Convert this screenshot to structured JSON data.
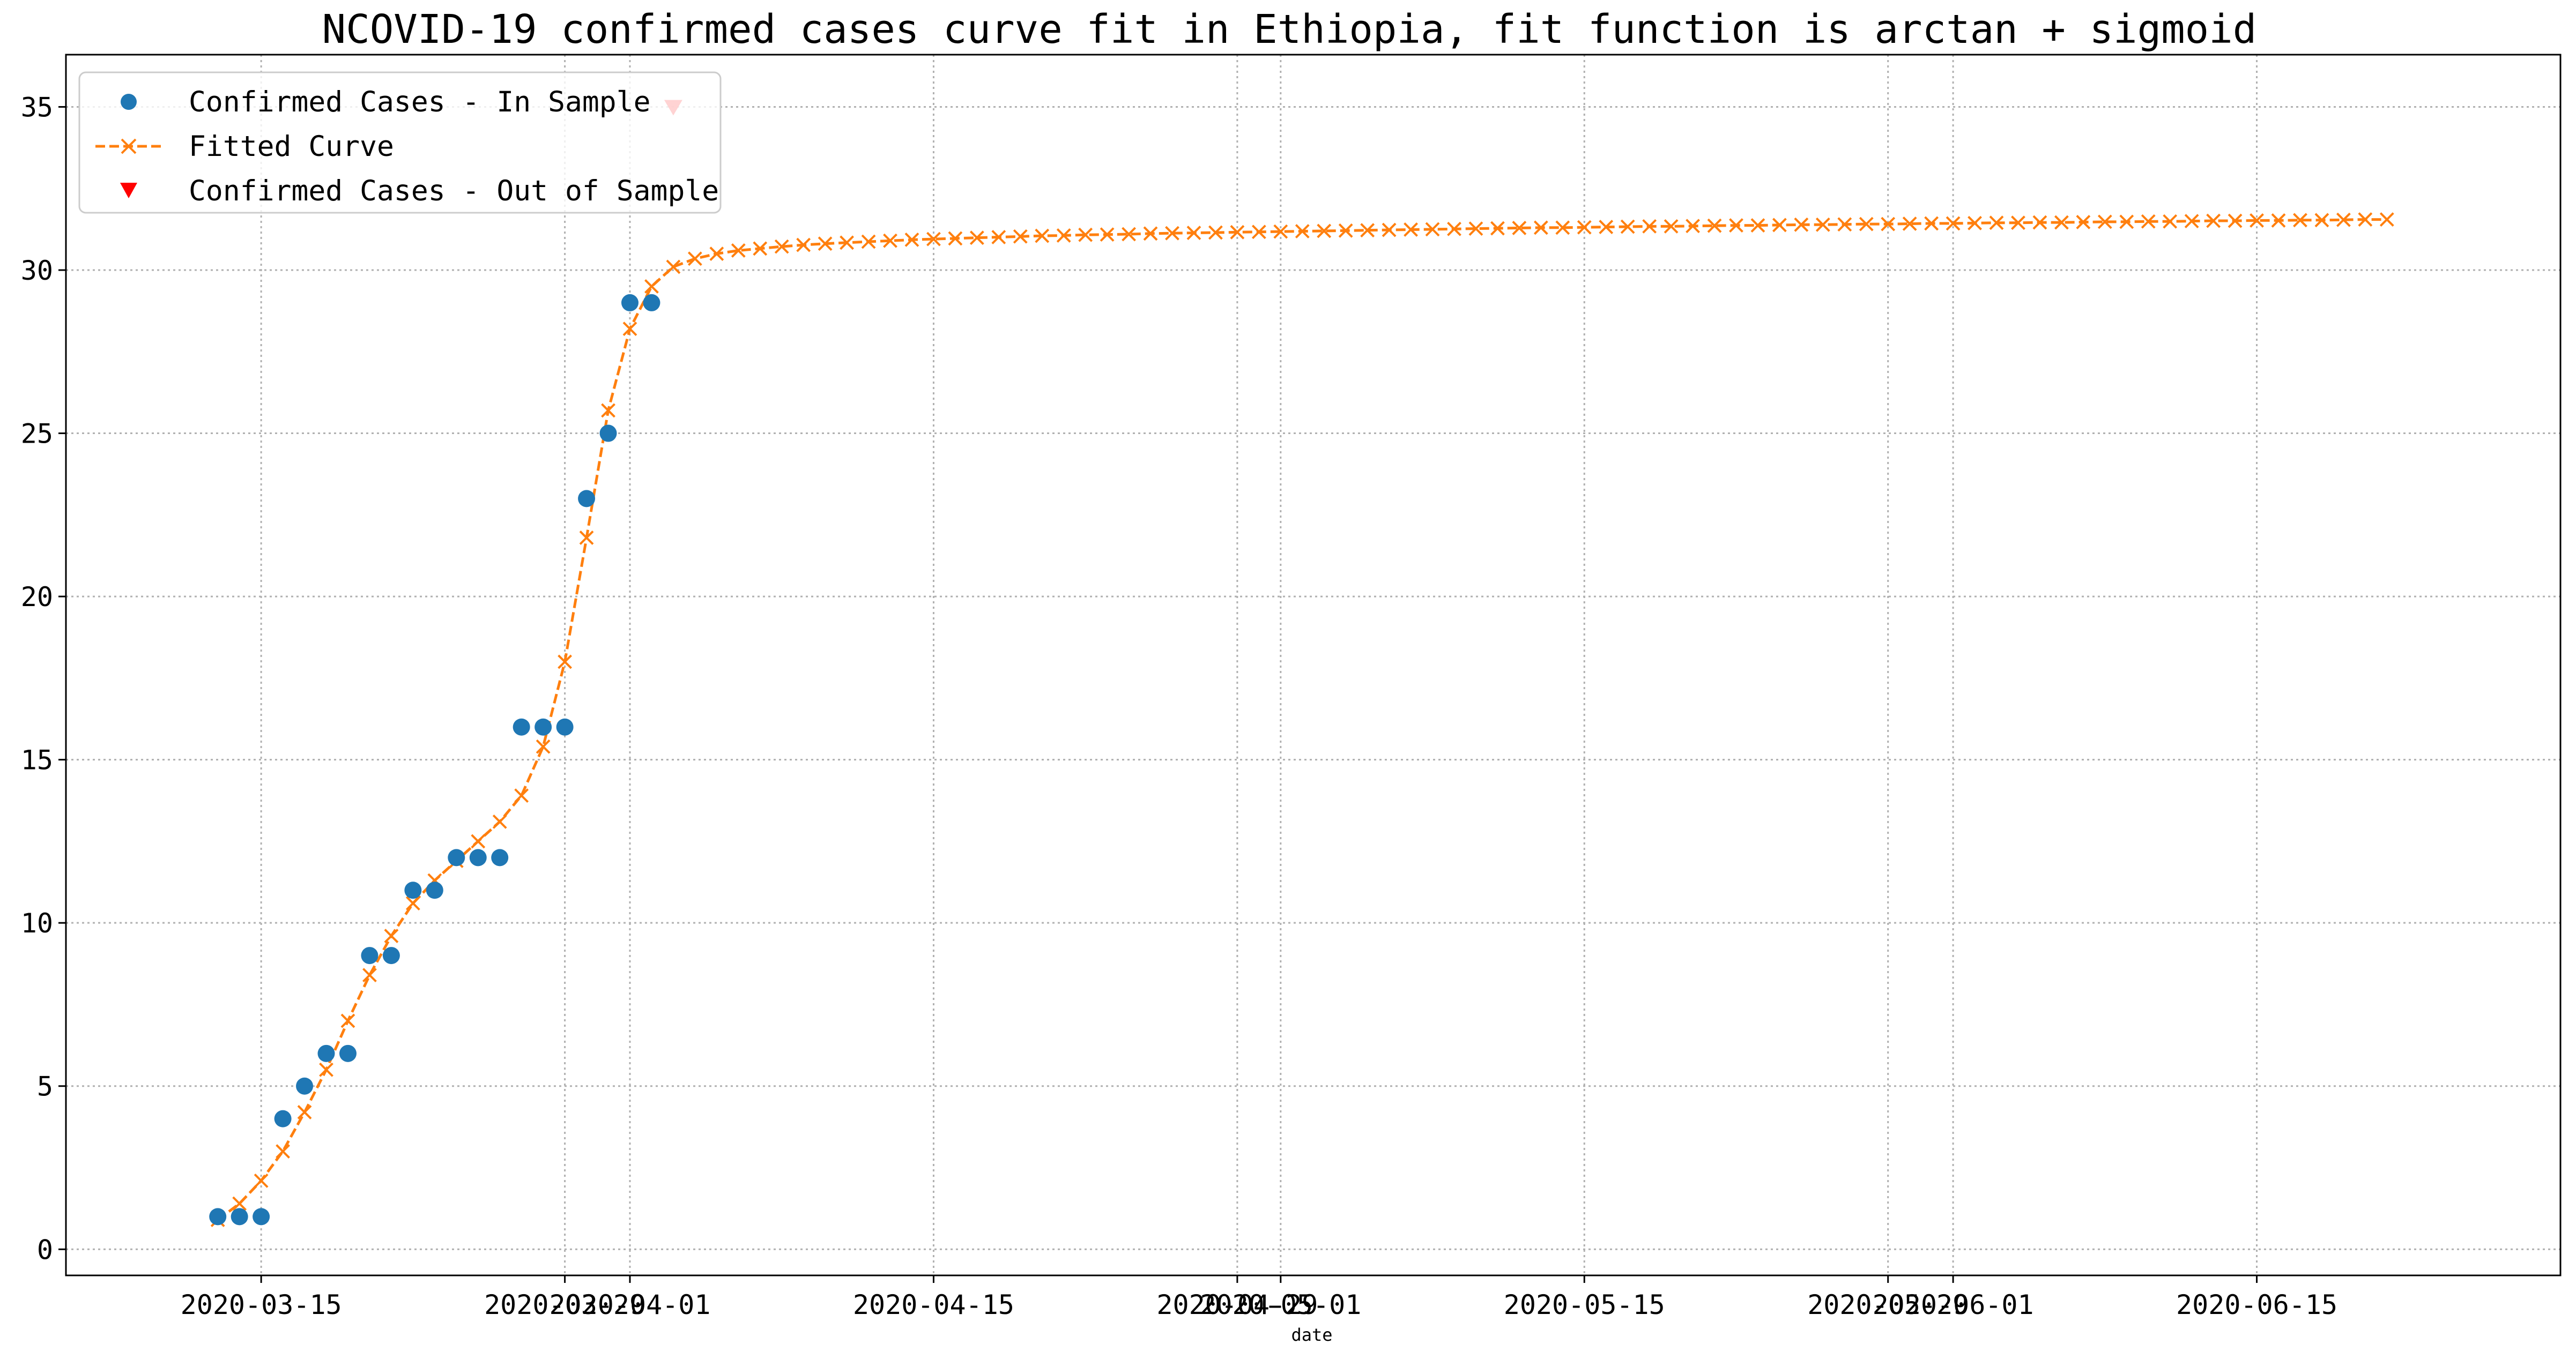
{
  "chart_data": {
    "type": "line",
    "title": "NCOVID-19 confirmed cases curve fit in Ethiopia, fit function is arctan + sigmoid",
    "xlabel": "date",
    "ylabel": "",
    "x_axis_type": "date",
    "xlim": [
      "2020-03-06",
      "2020-06-29"
    ],
    "ylim": [
      -0.8,
      36.6
    ],
    "grid": true,
    "legend_position": "upper-left",
    "x_ticks": [
      {
        "date": "2020-03-15",
        "label": "2020-03-15"
      },
      {
        "date": "2020-03-29",
        "label": "2020-03-29"
      },
      {
        "date": "2020-04-01",
        "label": "2020-04-01"
      },
      {
        "date": "2020-04-15",
        "label": "2020-04-15"
      },
      {
        "date": "2020-04-29",
        "label": "2020-04-29"
      },
      {
        "date": "2020-05-01",
        "label": "2020-05-01"
      },
      {
        "date": "2020-05-15",
        "label": "2020-05-15"
      },
      {
        "date": "2020-05-29",
        "label": "2020-05-29"
      },
      {
        "date": "2020-06-01",
        "label": "2020-06-01"
      },
      {
        "date": "2020-06-15",
        "label": "2020-06-15"
      }
    ],
    "y_ticks": [
      {
        "value": 0,
        "label": "0"
      },
      {
        "value": 5,
        "label": "5"
      },
      {
        "value": 10,
        "label": "10"
      },
      {
        "value": 15,
        "label": "15"
      },
      {
        "value": 20,
        "label": "20"
      },
      {
        "value": 25,
        "label": "25"
      },
      {
        "value": 30,
        "label": "30"
      },
      {
        "value": 35,
        "label": "35"
      }
    ],
    "series": [
      {
        "name": "Confirmed Cases - In Sample",
        "kind": "scatter",
        "marker": "circle",
        "color": "#1f77b4",
        "points": [
          {
            "date": "2020-03-13",
            "value": 1
          },
          {
            "date": "2020-03-14",
            "value": 1
          },
          {
            "date": "2020-03-15",
            "value": 1
          },
          {
            "date": "2020-03-16",
            "value": 4
          },
          {
            "date": "2020-03-17",
            "value": 5
          },
          {
            "date": "2020-03-18",
            "value": 6
          },
          {
            "date": "2020-03-19",
            "value": 6
          },
          {
            "date": "2020-03-20",
            "value": 9
          },
          {
            "date": "2020-03-21",
            "value": 9
          },
          {
            "date": "2020-03-22",
            "value": 11
          },
          {
            "date": "2020-03-23",
            "value": 11
          },
          {
            "date": "2020-03-24",
            "value": 12
          },
          {
            "date": "2020-03-25",
            "value": 12
          },
          {
            "date": "2020-03-26",
            "value": 12
          },
          {
            "date": "2020-03-27",
            "value": 16
          },
          {
            "date": "2020-03-28",
            "value": 16
          },
          {
            "date": "2020-03-29",
            "value": 16
          },
          {
            "date": "2020-03-30",
            "value": 23
          },
          {
            "date": "2020-03-31",
            "value": 25
          },
          {
            "date": "2020-04-01",
            "value": 29
          },
          {
            "date": "2020-04-02",
            "value": 29
          }
        ]
      },
      {
        "name": "Fitted Curve",
        "kind": "line",
        "marker": "x",
        "line_style": "dashed",
        "color": "#ff7f0e",
        "start_date": "2020-03-13",
        "values": [
          0.9,
          1.4,
          2.1,
          3.0,
          4.2,
          5.5,
          7.0,
          8.4,
          9.6,
          10.6,
          11.3,
          11.9,
          12.5,
          13.1,
          13.9,
          15.4,
          18.0,
          21.8,
          25.7,
          28.2,
          29.5,
          30.1,
          30.35,
          30.5,
          30.6,
          30.66,
          30.72,
          30.77,
          30.81,
          30.84,
          30.87,
          30.9,
          30.93,
          30.95,
          30.97,
          30.99,
          31.01,
          31.03,
          31.05,
          31.06,
          31.08,
          31.09,
          31.1,
          31.12,
          31.13,
          31.14,
          31.15,
          31.16,
          31.17,
          31.18,
          31.19,
          31.2,
          31.21,
          31.22,
          31.23,
          31.24,
          31.25,
          31.26,
          31.27,
          31.28,
          31.29,
          31.3,
          31.3,
          31.31,
          31.32,
          31.33,
          31.34,
          31.34,
          31.35,
          31.36,
          31.37,
          31.37,
          31.38,
          31.39,
          31.39,
          31.4,
          31.41,
          31.41,
          31.42,
          31.43,
          31.43,
          31.44,
          31.45,
          31.45,
          31.46,
          31.46,
          31.47,
          31.48,
          31.48,
          31.49,
          31.49,
          31.5,
          31.51,
          31.51,
          31.52,
          31.52,
          31.53,
          31.53,
          31.54,
          31.55,
          31.55
        ]
      },
      {
        "name": "Confirmed Cases - Out of Sample",
        "kind": "scatter",
        "marker": "triangle-down",
        "color": "#ff0000",
        "points": [
          {
            "date": "2020-04-03",
            "value": 35
          }
        ]
      }
    ]
  }
}
